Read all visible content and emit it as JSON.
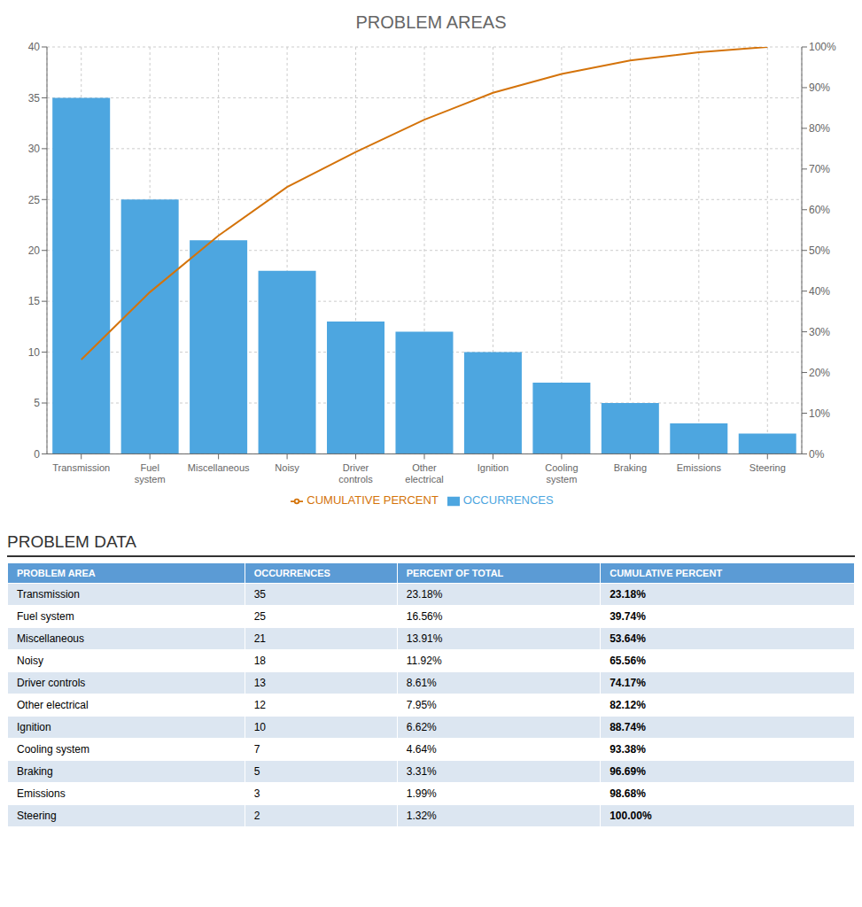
{
  "chart_data": {
    "type": "bar",
    "title": "PROBLEM AREAS",
    "categories": [
      "Transmission",
      "Fuel system",
      "Miscellaneous",
      "Noisy",
      "Driver controls",
      "Other electrical",
      "Ignition",
      "Cooling system",
      "Braking",
      "Emissions",
      "Steering"
    ],
    "series": [
      {
        "name": "OCCURRENCES",
        "type": "bar",
        "color": "#4da6e0",
        "values": [
          35,
          25,
          21,
          18,
          13,
          12,
          10,
          7,
          5,
          3,
          2
        ]
      },
      {
        "name": "CUMULATIVE PERCENT",
        "type": "line",
        "color": "#d4730a",
        "axis": "y2",
        "values": [
          23.18,
          39.74,
          53.64,
          65.56,
          74.17,
          82.12,
          88.74,
          93.38,
          96.69,
          98.68,
          100.0
        ]
      }
    ],
    "ylim": [
      0,
      40
    ],
    "yticks": [
      0,
      5,
      10,
      15,
      20,
      25,
      30,
      35,
      40
    ],
    "y2lim": [
      0,
      100
    ],
    "y2ticks": [
      {
        "value": 0,
        "label": "0%"
      },
      {
        "value": 10,
        "label": "10%"
      },
      {
        "value": 20,
        "label": "20%"
      },
      {
        "value": 30,
        "label": "30%"
      },
      {
        "value": 40,
        "label": "40%"
      },
      {
        "value": 50,
        "label": "50%"
      },
      {
        "value": 60,
        "label": "60%"
      },
      {
        "value": 70,
        "label": "70%"
      },
      {
        "value": 80,
        "label": "80%"
      },
      {
        "value": 90,
        "label": "90%"
      },
      {
        "value": 100,
        "label": "100%"
      }
    ],
    "grid": true,
    "legend": "bottom"
  },
  "table": {
    "title": "PROBLEM DATA",
    "headers": [
      "PROBLEM AREA",
      "OCCURRENCES",
      "PERCENT OF TOTAL",
      "CUMULATIVE PERCENT"
    ],
    "header_color": "#5b9bd5",
    "row_colors": [
      "#dce6f1",
      "#ffffff"
    ],
    "rows": [
      [
        "Transmission",
        "35",
        "23.18%",
        "23.18%"
      ],
      [
        "Fuel system",
        "25",
        "16.56%",
        "39.74%"
      ],
      [
        "Miscellaneous",
        "21",
        "13.91%",
        "53.64%"
      ],
      [
        "Noisy",
        "18",
        "11.92%",
        "65.56%"
      ],
      [
        "Driver controls",
        "13",
        "8.61%",
        "74.17%"
      ],
      [
        "Other electrical",
        "12",
        "7.95%",
        "82.12%"
      ],
      [
        "Ignition",
        "10",
        "6.62%",
        "88.74%"
      ],
      [
        "Cooling system",
        "7",
        "4.64%",
        "93.38%"
      ],
      [
        "Braking",
        "5",
        "3.31%",
        "96.69%"
      ],
      [
        "Emissions",
        "3",
        "1.99%",
        "98.68%"
      ],
      [
        "Steering",
        "2",
        "1.32%",
        "100.00%"
      ]
    ]
  }
}
